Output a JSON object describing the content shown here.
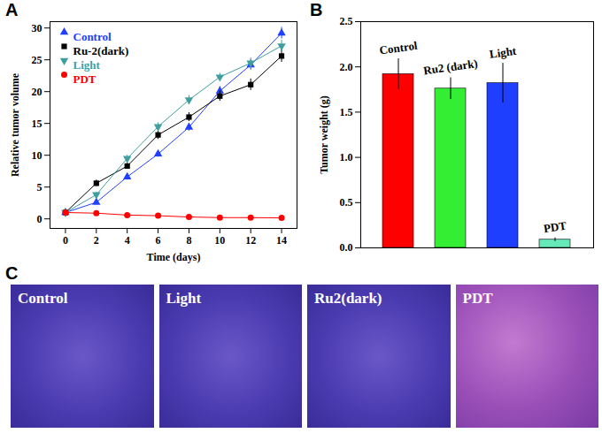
{
  "chart_data": [
    {
      "panel": "A",
      "type": "line",
      "xlabel": "Time (days)",
      "ylabel": "Relative tumor volume",
      "x": [
        0,
        2,
        4,
        6,
        8,
        10,
        12,
        14
      ],
      "series": [
        {
          "name": "Control",
          "color": "#2040ff",
          "marker": "triangle-up",
          "values": [
            1,
            2.6,
            6.6,
            10.2,
            14.4,
            20.1,
            24.2,
            29.2
          ],
          "errors": [
            0.2,
            0.4,
            0.5,
            0.5,
            0.6,
            0.7,
            0.8,
            0.9
          ]
        },
        {
          "name": "Ru-2(dark)",
          "color": "#000000",
          "marker": "square",
          "values": [
            1,
            5.6,
            8.3,
            13.2,
            16.0,
            19.3,
            21.1,
            25.6
          ],
          "errors": [
            0.2,
            0.5,
            0.5,
            0.7,
            0.7,
            0.8,
            0.9,
            1.0
          ]
        },
        {
          "name": "Light",
          "color": "#3f9f9f",
          "marker": "triangle-down",
          "values": [
            1,
            3.8,
            9.5,
            14.5,
            18.7,
            22.3,
            24.5,
            27.2
          ],
          "errors": [
            0.2,
            0.4,
            0.5,
            0.6,
            0.7,
            0.6,
            0.8,
            0.9
          ]
        },
        {
          "name": "PDT",
          "color": "#ff0000",
          "marker": "circle",
          "values": [
            1,
            0.9,
            0.6,
            0.5,
            0.3,
            0.2,
            0.2,
            0.15
          ],
          "errors": [
            0.1,
            0.1,
            0.1,
            0.1,
            0.1,
            0.1,
            0.1,
            0.1
          ]
        }
      ],
      "xlim": [
        -1,
        15
      ],
      "ylim": [
        -1.5,
        31
      ],
      "xticks": [
        0,
        2,
        4,
        6,
        8,
        10,
        12,
        14
      ],
      "yticks": [
        0,
        5,
        10,
        15,
        20,
        25,
        30
      ],
      "legend": "upper left"
    },
    {
      "panel": "B",
      "type": "bar",
      "ylabel": "Tumor weight (g)",
      "categories": [
        "Control",
        "Ru2 (dark)",
        "Light",
        "PDT"
      ],
      "values": [
        1.92,
        1.76,
        1.82,
        0.09
      ],
      "errors": [
        0.17,
        0.12,
        0.22,
        0.02
      ],
      "colors": [
        "#ff0000",
        "#33ee33",
        "#1f3fff",
        "#66e8b8"
      ],
      "ylim": [
        0,
        2.5
      ],
      "yticks": [
        {
          "value": 0,
          "label": "0.0"
        },
        {
          "value": 0.5,
          "label": "0.5"
        },
        {
          "value": 1,
          "label": "1.0"
        },
        {
          "value": 1.5,
          "label": "1.5"
        },
        {
          "value": 2,
          "label": "2.0"
        },
        {
          "value": 2.5,
          "label": "2.5"
        }
      ],
      "tick_labels": "y"
    }
  ],
  "figure": {
    "panel": "C",
    "images": [
      "Control",
      "Light",
      "Ru2(dark)",
      "PDT"
    ]
  }
}
